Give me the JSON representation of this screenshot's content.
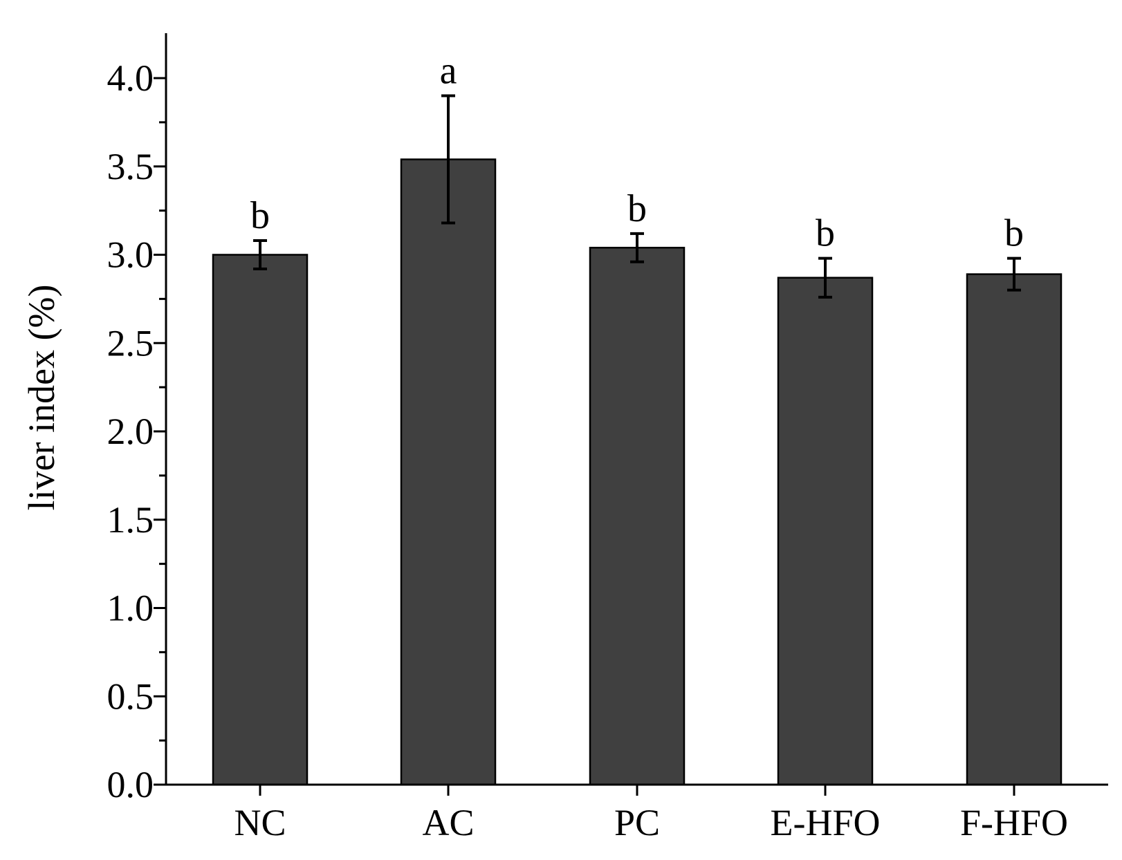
{
  "chart_data": {
    "type": "bar",
    "title": "",
    "xlabel": "",
    "ylabel": "liver index (%)",
    "ylim": [
      0,
      4.25
    ],
    "y_ticks": [
      0.0,
      0.5,
      1.0,
      1.5,
      2.0,
      2.5,
      3.0,
      3.5,
      4.0
    ],
    "y_tick_labels": [
      "0.0",
      "0.5",
      "1.0",
      "1.5",
      "2.0",
      "2.5",
      "3.0",
      "3.5",
      "4.0"
    ],
    "grid": false,
    "legend": "none",
    "categories": [
      "NC",
      "AC",
      "PC",
      "E-HFO",
      "F-HFO"
    ],
    "values": [
      3.0,
      3.54,
      3.04,
      2.87,
      2.89
    ],
    "errors": [
      0.08,
      0.36,
      0.08,
      0.11,
      0.09
    ],
    "significance_labels": [
      "b",
      "a",
      "b",
      "b",
      "b"
    ],
    "bar_color": "#404040",
    "bar_edge_color": "#000000",
    "error_bar_color": "#000000"
  }
}
